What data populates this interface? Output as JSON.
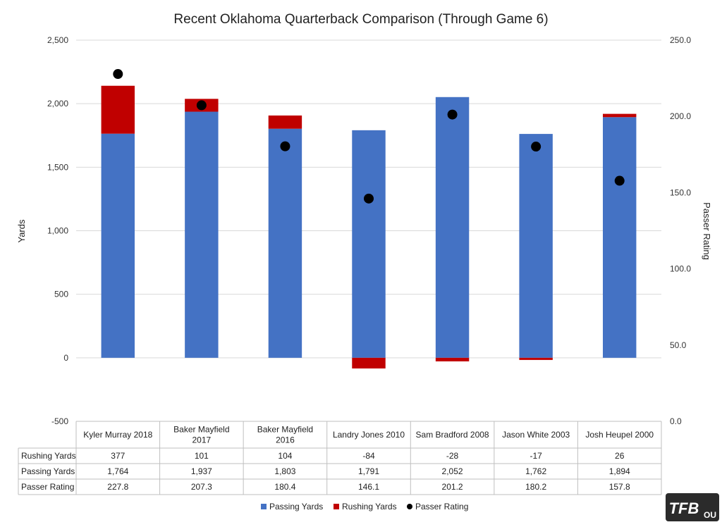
{
  "chart_data": {
    "type": "bar",
    "stacked": true,
    "title": "Recent Oklahoma Quarterback Comparison (Through Game 6)",
    "ylabel": "Yards",
    "y2label": "Passer Rating",
    "ylim": [
      -500,
      2500
    ],
    "y_ticks": [
      "-500",
      "0",
      "500",
      "1,000",
      "1,500",
      "2,000",
      "2,500"
    ],
    "y2lim": [
      0,
      250
    ],
    "y2_ticks": [
      "0.0",
      "50.0",
      "100.0",
      "150.0",
      "200.0",
      "250.0"
    ],
    "grid": true,
    "legend_position": "bottom",
    "categories": [
      "Kyler Murray 2018",
      "Baker Mayfield 2017",
      "Baker Mayfield 2016",
      "Landry Jones 2010",
      "Sam Bradford 2008",
      "Jason White 2003",
      "Josh Heupel 2000"
    ],
    "category_lines": [
      [
        "Kyler Murray 2018"
      ],
      [
        "Baker Mayfield",
        "2017"
      ],
      [
        "Baker Mayfield",
        "2016"
      ],
      [
        "Landry Jones 2010"
      ],
      [
        "Sam Bradford 2008"
      ],
      [
        "Jason White 2003"
      ],
      [
        "Josh Heupel 2000"
      ]
    ],
    "series": [
      {
        "name": "Passing Yards",
        "type": "bar",
        "axis": "left",
        "color": "#4472C4",
        "values": [
          1764,
          1937,
          1803,
          1791,
          2052,
          1762,
          1894
        ]
      },
      {
        "name": "Rushing Yards",
        "type": "bar",
        "axis": "left",
        "color": "#C00000",
        "values": [
          377,
          101,
          104,
          -84,
          -28,
          -17,
          26
        ]
      },
      {
        "name": "Passer Rating",
        "type": "scatter",
        "axis": "right",
        "color": "#000000",
        "values": [
          227.8,
          207.3,
          180.4,
          146.1,
          201.2,
          180.2,
          157.8
        ]
      }
    ],
    "table": {
      "row_order": [
        "Rushing Yards",
        "Passing Yards",
        "Passer Rating"
      ],
      "rows": {
        "Rushing Yards": [
          "377",
          "101",
          "104",
          "-84",
          "-28",
          "-17",
          "26"
        ],
        "Passing Yards": [
          "1,764",
          "1,937",
          "1,803",
          "1,791",
          "2,052",
          "1,762",
          "1,894"
        ],
        "Passer Rating": [
          "227.8",
          "207.3",
          "180.4",
          "146.1",
          "201.2",
          "180.2",
          "157.8"
        ]
      }
    },
    "legend": [
      {
        "name": "Passing Yards",
        "marker": "square",
        "color": "#4472C4"
      },
      {
        "name": "Rushing Yards",
        "marker": "square",
        "color": "#C00000"
      },
      {
        "name": "Passer Rating",
        "marker": "circle",
        "color": "#000000"
      }
    ]
  },
  "logo": {
    "text": "TFB",
    "subtext": "OU"
  },
  "colors": {
    "grid": "#D9D9D9",
    "table_border": "#BFBFBF",
    "logo_bg": "#2B2B2B"
  }
}
